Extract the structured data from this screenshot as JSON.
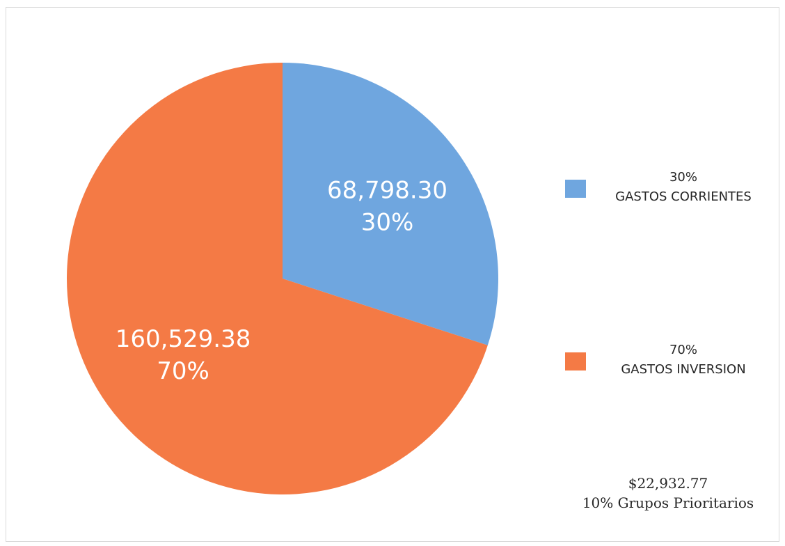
{
  "chart_data": {
    "type": "pie",
    "title": "",
    "slices": [
      {
        "label": "GASTOS CORRIENTES",
        "value": 68798.3,
        "value_text": "68,798.30",
        "percent_text": "30%",
        "color": "#6fa6df"
      },
      {
        "label": "GASTOS INVERSION",
        "value": 160529.38,
        "value_text": "160,529.38",
        "percent_text": "70%",
        "color": "#f47a45"
      }
    ],
    "legend_position": "right",
    "start_angle_deg": 0,
    "direction": "clockwise"
  },
  "note": {
    "amount": "$22,932.77",
    "description": "10% Grupos Prioritarios"
  }
}
